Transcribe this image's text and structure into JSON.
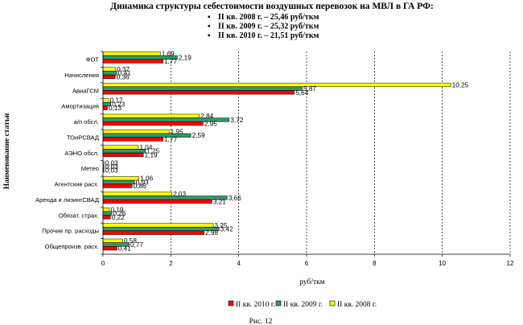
{
  "chart_data": {
    "type": "bar",
    "orientation": "horizontal",
    "title": "Динамика структуры себестоимости воздушных перевозок на МВЛ в ГА РФ:",
    "subtitle_lines": [
      "II кв. 2008 г. – 25,46 руб/ткм",
      "II кв. 2009 г. – 25,32 руб/ткм",
      "II кв. 2010 г. – 21,51 руб/ткм"
    ],
    "bullet": "▪",
    "xlabel": "руб/ткм",
    "ylabel": "Наименование статьи",
    "xlim": [
      0,
      12
    ],
    "xticks": [
      0,
      2,
      4,
      6,
      8,
      10,
      12
    ],
    "xtick_labels": [
      "0",
      "2",
      "4",
      "6",
      "8",
      "10",
      "12"
    ],
    "grid": "vertical dashed",
    "categories": [
      "ФОТ",
      "Начисления",
      "АвиаГСМ",
      "Амортизация",
      "а/п обсл.",
      "ТОиРСВАД",
      "АЭНО обсл.",
      "Метео",
      "Агентские расх.",
      "Аренда и лизингСВАД",
      "Обязат. страх.",
      "Прочие пр. расходы",
      "Общепроизв. расх."
    ],
    "series": [
      {
        "name": "II кв. 2008 г.",
        "color": "#ffff00",
        "values": [
          1.69,
          0.37,
          10.25,
          0.17,
          2.84,
          1.95,
          1.04,
          0.03,
          1.06,
          2.03,
          0.19,
          3.25,
          0.58
        ],
        "labels": [
          "1,69",
          "0,37",
          "10,25",
          "0,17",
          "2,84",
          "1,95",
          "1,04",
          "0,03",
          "1,06",
          "2,03",
          "0,19",
          "3,25",
          "0,58"
        ]
      },
      {
        "name": "II кв. 2009 г.",
        "color": "#339966",
        "values": [
          2.19,
          0.41,
          5.87,
          0.23,
          3.72,
          2.59,
          1.25,
          0.03,
          0.93,
          3.66,
          0.26,
          3.42,
          0.77
        ],
        "labels": [
          "2,19",
          "0,41",
          "5,87",
          "0,23",
          "3,72",
          "2,59",
          "1,25",
          "0,03",
          "0,93",
          "3,66",
          "0,26",
          "3,42",
          "0,77"
        ]
      },
      {
        "name": "II кв. 2010 г.",
        "color": "#ff0000",
        "values": [
          1.77,
          0.36,
          5.64,
          0.13,
          2.95,
          1.77,
          1.19,
          0.03,
          0.86,
          3.21,
          0.22,
          2.98,
          0.41
        ],
        "labels": [
          "1,77",
          "0,36",
          "5,64",
          "0,13",
          "2,95",
          "1,77",
          "1,19",
          "0,03",
          "0,86",
          "3,21",
          "0,22",
          "2,98",
          "0,41"
        ]
      }
    ],
    "legend_order": [
      "II кв. 2010 г.",
      "II кв. 2009 г.",
      "II кв. 2008 г."
    ],
    "legend_position": "bottom",
    "caption": "Рис. 12"
  }
}
